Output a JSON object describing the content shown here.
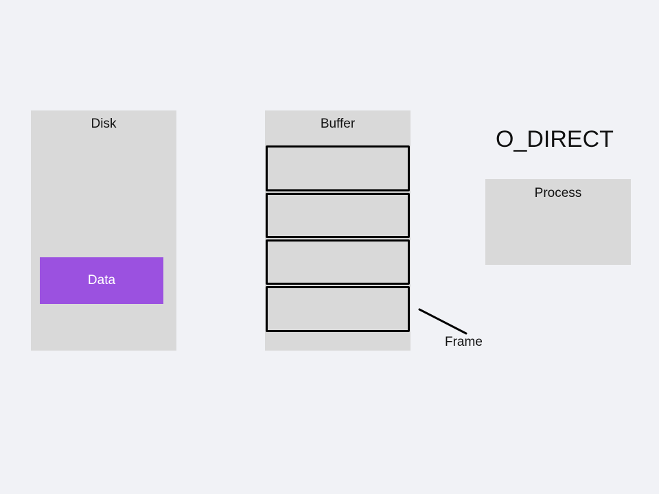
{
  "diagram": {
    "mode_title": "O_DIRECT",
    "disk": {
      "label": "Disk",
      "data_label": "Data"
    },
    "buffer": {
      "label": "Buffer",
      "frame_count": 4,
      "frame_label": "Frame"
    },
    "process": {
      "label": "Process"
    }
  },
  "colors": {
    "background": "#f1f2f6",
    "panel": "#d9d9d9",
    "data_block": "#9b51e0",
    "frame_border": "#000000"
  }
}
